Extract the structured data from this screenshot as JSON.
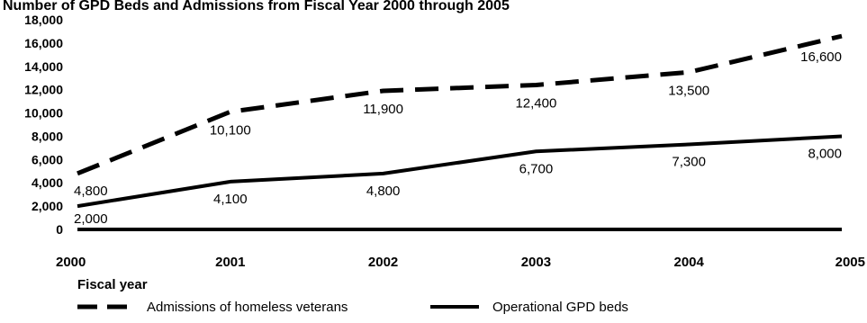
{
  "chart_data": {
    "type": "line",
    "title": "Number of GPD Beds and Admissions from Fiscal Year 2000 through 2005",
    "xlabel": "Fiscal year",
    "ylabel": "",
    "x": [
      "2000",
      "2001",
      "2002",
      "2003",
      "2004",
      "2005"
    ],
    "ylim": [
      0,
      18000
    ],
    "yticks": [
      "0",
      "2,000",
      "4,000",
      "6,000",
      "8,000",
      "10,000",
      "12,000",
      "14,000",
      "16,000",
      "18,000"
    ],
    "grid": false,
    "legend_position": "bottom",
    "series": [
      {
        "name": "Admissions of homeless veterans",
        "style": "dashed",
        "color": "#000000",
        "values": [
          4800,
          10100,
          11900,
          12400,
          13500,
          16600
        ],
        "labels": [
          "4,800",
          "10,100",
          "11,900",
          "12,400",
          "13,500",
          "16,600"
        ]
      },
      {
        "name": "Operational GPD beds",
        "style": "solid",
        "color": "#000000",
        "values": [
          2000,
          4100,
          4800,
          6700,
          7300,
          8000
        ],
        "labels": [
          "2,000",
          "4,100",
          "4,800",
          "6,700",
          "7,300",
          "8,000"
        ]
      }
    ]
  }
}
